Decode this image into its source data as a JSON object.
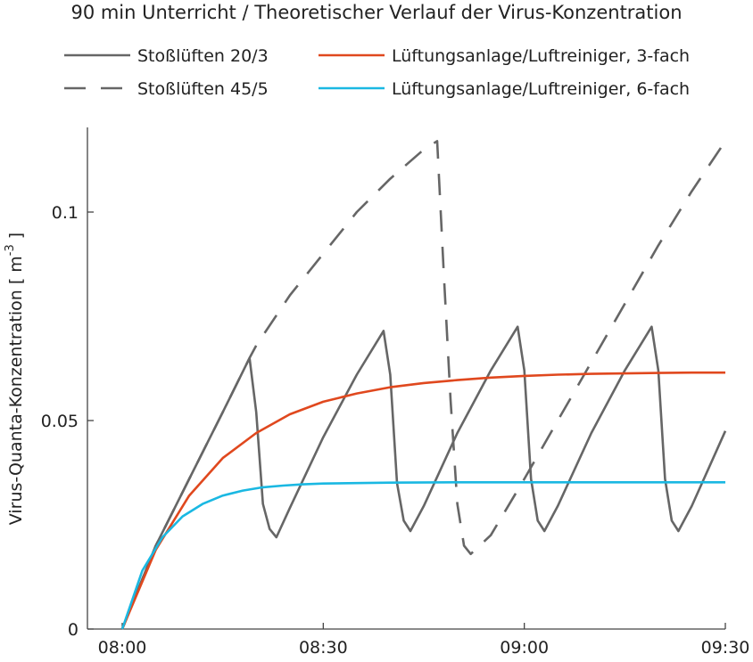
{
  "chart_data": {
    "type": "line",
    "title": "90 min Unterricht / Theoretischer Verlauf der Virus-Konzentration",
    "xlabel": "",
    "ylabel": "Virus-Quanta-Konzentration  [ m",
    "ylabel_exponent": "-3",
    "ylabel_close": " ]",
    "xlim": [
      0,
      90
    ],
    "ylim": [
      0,
      0.12
    ],
    "x_ticks": [
      {
        "value": 0,
        "label": "08:00"
      },
      {
        "value": 30,
        "label": "08:30"
      },
      {
        "value": 60,
        "label": "09:00"
      },
      {
        "value": 90,
        "label": "09:30"
      }
    ],
    "y_ticks": [
      {
        "value": 0,
        "label": "0"
      },
      {
        "value": 0.05,
        "label": "0.05"
      },
      {
        "value": 0.1,
        "label": "0.1"
      }
    ],
    "grid": false,
    "legend_position": "top",
    "series": [
      {
        "name": "Stoßlüften 20/3",
        "color": "#666666",
        "dash": "solid",
        "x": [
          0,
          5,
          10,
          15,
          19,
          20,
          21,
          22,
          23,
          25,
          30,
          35,
          39,
          40,
          41,
          42,
          43,
          45,
          50,
          55,
          59,
          60,
          61,
          62,
          63,
          65,
          70,
          75,
          79,
          80,
          81,
          82,
          83,
          85,
          90
        ],
        "y": [
          0,
          0.02,
          0.036,
          0.052,
          0.065,
          0.052,
          0.03,
          0.024,
          0.022,
          0.029,
          0.046,
          0.061,
          0.0715,
          0.061,
          0.035,
          0.026,
          0.0235,
          0.0295,
          0.047,
          0.062,
          0.0725,
          0.062,
          0.036,
          0.026,
          0.0235,
          0.0295,
          0.047,
          0.062,
          0.0725,
          0.062,
          0.036,
          0.026,
          0.0235,
          0.0295,
          0.0475
        ]
      },
      {
        "name": "Stoßlüften 45/5",
        "color": "#666666",
        "dash": "dashed",
        "x": [
          0,
          5,
          10,
          15,
          19,
          20,
          25,
          30,
          35,
          40,
          45,
          47,
          48,
          49,
          50,
          51,
          52,
          55,
          60,
          65,
          70,
          75,
          80,
          85,
          90
        ],
        "y": [
          0,
          0.02,
          0.036,
          0.052,
          0.065,
          0.068,
          0.08,
          0.09,
          0.1,
          0.108,
          0.115,
          0.117,
          0.085,
          0.055,
          0.03,
          0.02,
          0.018,
          0.0225,
          0.036,
          0.05,
          0.064,
          0.078,
          0.092,
          0.105,
          0.117
        ]
      },
      {
        "name": "Lüftungsanlage/Luftreiniger, 3-fach",
        "color": "#e0481e",
        "dash": "solid",
        "x": [
          0,
          5,
          10,
          15,
          20,
          25,
          30,
          35,
          40,
          45,
          50,
          55,
          60,
          65,
          70,
          75,
          80,
          85,
          90
        ],
        "y": [
          0,
          0.019,
          0.032,
          0.041,
          0.047,
          0.0515,
          0.0545,
          0.0565,
          0.058,
          0.059,
          0.0597,
          0.0603,
          0.0607,
          0.061,
          0.0612,
          0.0613,
          0.0614,
          0.0615,
          0.0615
        ]
      },
      {
        "name": "Lüftungsanlage/Luftreiniger, 6-fach",
        "color": "#1ab8e2",
        "dash": "solid",
        "x": [
          0,
          3,
          6,
          9,
          12,
          15,
          18,
          21,
          24,
          27,
          30,
          35,
          40,
          50,
          60,
          70,
          80,
          90
        ],
        "y": [
          0,
          0.014,
          0.022,
          0.027,
          0.03,
          0.032,
          0.0332,
          0.034,
          0.0344,
          0.0347,
          0.0349,
          0.035,
          0.0351,
          0.0352,
          0.0352,
          0.0352,
          0.0352,
          0.0352
        ]
      }
    ]
  }
}
